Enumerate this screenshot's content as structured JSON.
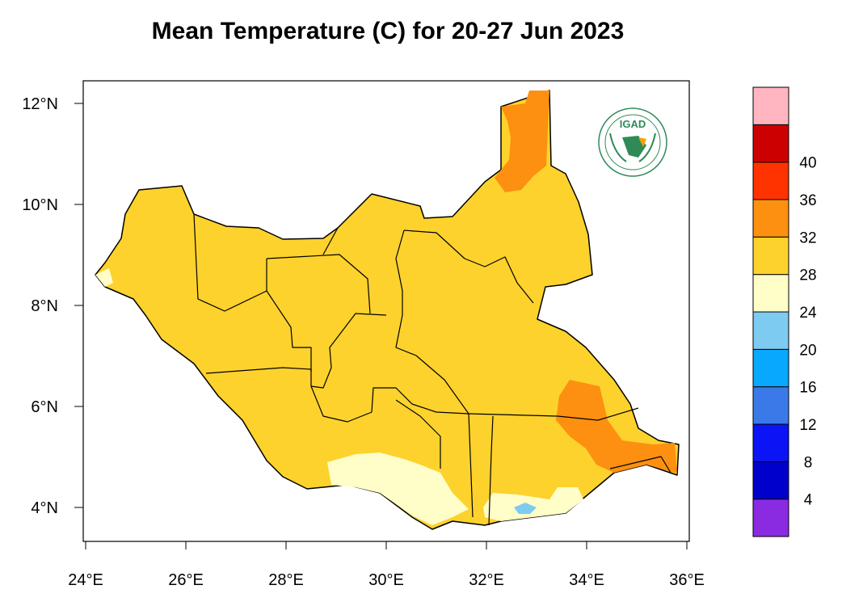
{
  "title": "Mean Temperature (C) for 20-27 Jun 2023",
  "map": {
    "region": "South Sudan",
    "lon_range": [
      24,
      36
    ],
    "lat_range": [
      3.4,
      12.4
    ],
    "x_ticks": [
      "24°E",
      "26°E",
      "28°E",
      "30°E",
      "32°E",
      "34°E",
      "36°E"
    ],
    "y_ticks": [
      "12°N",
      "10°N",
      "8°N",
      "6°N",
      "4°N"
    ],
    "logo_text": "IGAD"
  },
  "colorbar": {
    "bins": [
      {
        "color": "#8a2be2"
      },
      {
        "color": "#0000cd"
      },
      {
        "color": "#0a14f5"
      },
      {
        "color": "#3a7ae8"
      },
      {
        "color": "#08a8ff"
      },
      {
        "color": "#7ecbf2"
      },
      {
        "color": "#fffdc8"
      },
      {
        "color": "#fdd22c"
      },
      {
        "color": "#fd9010"
      },
      {
        "color": "#ff3300"
      },
      {
        "color": "#cc0000"
      },
      {
        "color": "#ffb6c1"
      }
    ],
    "labels": [
      "4",
      "8",
      "12",
      "16",
      "20",
      "24",
      "28",
      "32",
      "36",
      "40"
    ]
  },
  "colors": {
    "temp_24_28": "#fdd22c",
    "temp_28_32": "#fd9010",
    "temp_20_24": "#fffdc8",
    "temp_16_20": "#7ecbf2"
  }
}
